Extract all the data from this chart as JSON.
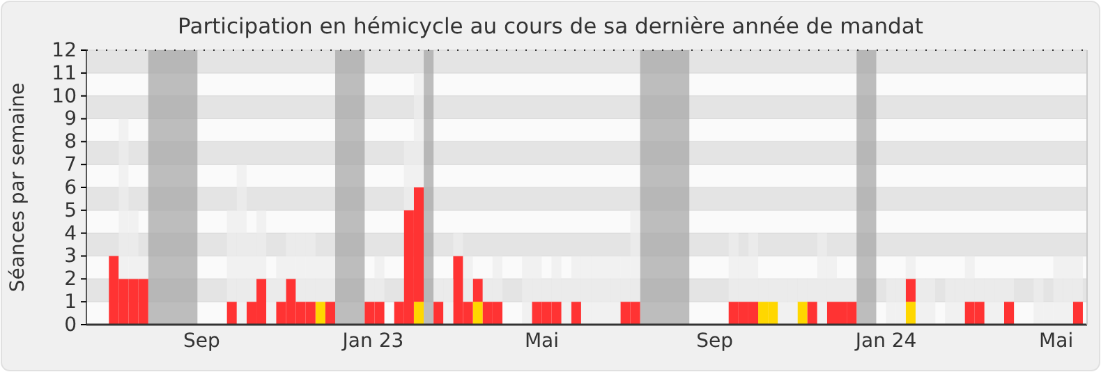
{
  "chart_data": {
    "type": "bar",
    "title": "Participation en hémicycle au cours de sa dernière année de mandat",
    "ylabel": "Séances par semaine",
    "stacked": true,
    "grid": true,
    "xlim": [
      "2022-06-11",
      "2024-05-23"
    ],
    "xticks": [
      {
        "value": "2022-09-01",
        "label": "Sep"
      },
      {
        "value": "2023-01-01",
        "label": "Jan 23"
      },
      {
        "value": "2023-05-01",
        "label": "Mai"
      },
      {
        "value": "2023-09-01",
        "label": "Sep"
      },
      {
        "value": "2024-01-01",
        "label": "Jan 24"
      },
      {
        "value": "2024-05-01",
        "label": "Mai"
      }
    ],
    "ylim": [
      0,
      12
    ],
    "yticks": [
      0,
      1,
      2,
      3,
      4,
      5,
      6,
      7,
      8,
      9,
      10,
      11,
      12
    ],
    "x": [
      "2022-06-27",
      "2022-07-04",
      "2022-07-11",
      "2022-07-18",
      "2022-07-25",
      "2022-08-01",
      "2022-08-08",
      "2022-08-15",
      "2022-08-22",
      "2022-08-29",
      "2022-09-05",
      "2022-09-12",
      "2022-09-19",
      "2022-09-26",
      "2022-10-03",
      "2022-10-10",
      "2022-10-17",
      "2022-10-24",
      "2022-10-31",
      "2022-11-07",
      "2022-11-14",
      "2022-11-21",
      "2022-11-28",
      "2022-12-05",
      "2022-12-12",
      "2022-12-19",
      "2022-12-26",
      "2023-01-02",
      "2023-01-09",
      "2023-01-16",
      "2023-01-23",
      "2023-01-30",
      "2023-02-06",
      "2023-02-13",
      "2023-02-20",
      "2023-02-27",
      "2023-03-06",
      "2023-03-13",
      "2023-03-20",
      "2023-03-27",
      "2023-04-03",
      "2023-04-10",
      "2023-04-17",
      "2023-04-24",
      "2023-05-01",
      "2023-05-08",
      "2023-05-15",
      "2023-05-22",
      "2023-05-29",
      "2023-06-05",
      "2023-06-12",
      "2023-06-19",
      "2023-06-26",
      "2023-07-03",
      "2023-07-10",
      "2023-07-17",
      "2023-07-24",
      "2023-07-31",
      "2023-08-07",
      "2023-08-14",
      "2023-08-21",
      "2023-08-28",
      "2023-09-04",
      "2023-09-11",
      "2023-09-18",
      "2023-09-25",
      "2023-10-02",
      "2023-10-09",
      "2023-10-16",
      "2023-10-23",
      "2023-10-30",
      "2023-11-06",
      "2023-11-13",
      "2023-11-20",
      "2023-11-27",
      "2023-12-04",
      "2023-12-11",
      "2023-12-18",
      "2023-12-25",
      "2024-01-01",
      "2024-01-08",
      "2024-01-15",
      "2024-01-22",
      "2024-01-29",
      "2024-02-05",
      "2024-02-12",
      "2024-02-19",
      "2024-02-26",
      "2024-03-04",
      "2024-03-11",
      "2024-03-18",
      "2024-03-25",
      "2024-04-01",
      "2024-04-08",
      "2024-04-15",
      "2024-04-22",
      "2024-04-29",
      "2024-05-06",
      "2024-05-13"
    ],
    "series": [
      {
        "color": "#ffd700",
        "values": [
          0,
          0,
          0,
          0,
          0,
          0,
          0,
          0,
          0,
          0,
          0,
          0,
          0,
          0,
          0,
          0,
          0,
          0,
          0,
          0,
          0,
          1,
          0,
          0,
          0,
          0,
          0,
          0,
          0,
          0,
          0,
          1,
          0,
          0,
          0,
          0,
          0,
          1,
          0,
          0,
          0,
          0,
          0,
          0,
          0,
          0,
          0,
          0,
          0,
          0,
          0,
          0,
          0,
          0,
          0,
          0,
          0,
          0,
          0,
          0,
          0,
          0,
          0,
          0,
          0,
          0,
          1,
          1,
          0,
          0,
          1,
          0,
          0,
          0,
          0,
          0,
          0,
          0,
          0,
          0,
          0,
          1,
          0,
          0,
          0,
          0,
          0,
          0,
          0,
          0,
          0,
          0,
          0,
          0,
          0,
          0,
          0,
          0,
          0
        ]
      },
      {
        "color": "#ff3333",
        "values": [
          3,
          2,
          2,
          2,
          0,
          0,
          0,
          0,
          0,
          0,
          0,
          0,
          1,
          0,
          1,
          2,
          0,
          1,
          2,
          1,
          1,
          0,
          1,
          0,
          0,
          0,
          1,
          1,
          0,
          1,
          5,
          5,
          0,
          1,
          0,
          3,
          1,
          1,
          1,
          1,
          0,
          0,
          0,
          1,
          1,
          1,
          0,
          1,
          0,
          0,
          0,
          0,
          1,
          1,
          0,
          0,
          0,
          0,
          0,
          0,
          0,
          0,
          0,
          1,
          1,
          1,
          0,
          0,
          0,
          0,
          0,
          1,
          0,
          1,
          1,
          1,
          0,
          0,
          0,
          0,
          0,
          1,
          0,
          0,
          0,
          0,
          0,
          1,
          1,
          0,
          0,
          1,
          0,
          0,
          0,
          0,
          0,
          0,
          1
        ]
      },
      {
        "color": "#eeeeee",
        "values": [
          0,
          7,
          3,
          1,
          0,
          0,
          0,
          0,
          0,
          0,
          0,
          0,
          4,
          7,
          3,
          3,
          2,
          2,
          2,
          3,
          3,
          2,
          2,
          0,
          0,
          0,
          1,
          2,
          0,
          0,
          3,
          5,
          0,
          1,
          2,
          1,
          2,
          0,
          1,
          2,
          0,
          0,
          3,
          2,
          1,
          2,
          2,
          2,
          3,
          3,
          3,
          3,
          2,
          4,
          0,
          0,
          0,
          0,
          0,
          0,
          0,
          0,
          0,
          3,
          2,
          3,
          1,
          1,
          2,
          2,
          1,
          1,
          4,
          2,
          1,
          1,
          0,
          0,
          0,
          2,
          2,
          1,
          2,
          2,
          0,
          2,
          2,
          2,
          1,
          2,
          2,
          1,
          0,
          0,
          2,
          1,
          3,
          3,
          2
        ]
      }
    ],
    "bands": [
      {
        "axis": "x",
        "from": "2022-07-25",
        "to": "2022-08-29",
        "color": "#a8a8a8"
      },
      {
        "axis": "x",
        "from": "2022-12-05",
        "to": "2022-12-26",
        "color": "#a8a8a8"
      },
      {
        "axis": "x",
        "from": "2023-02-06",
        "to": "2023-02-13",
        "color": "#a8a8a8"
      },
      {
        "axis": "x",
        "from": "2023-07-10",
        "to": "2023-08-14",
        "color": "#a8a8a8"
      },
      {
        "axis": "x",
        "from": "2023-12-11",
        "to": "2023-12-25",
        "color": "#a8a8a8"
      }
    ]
  }
}
